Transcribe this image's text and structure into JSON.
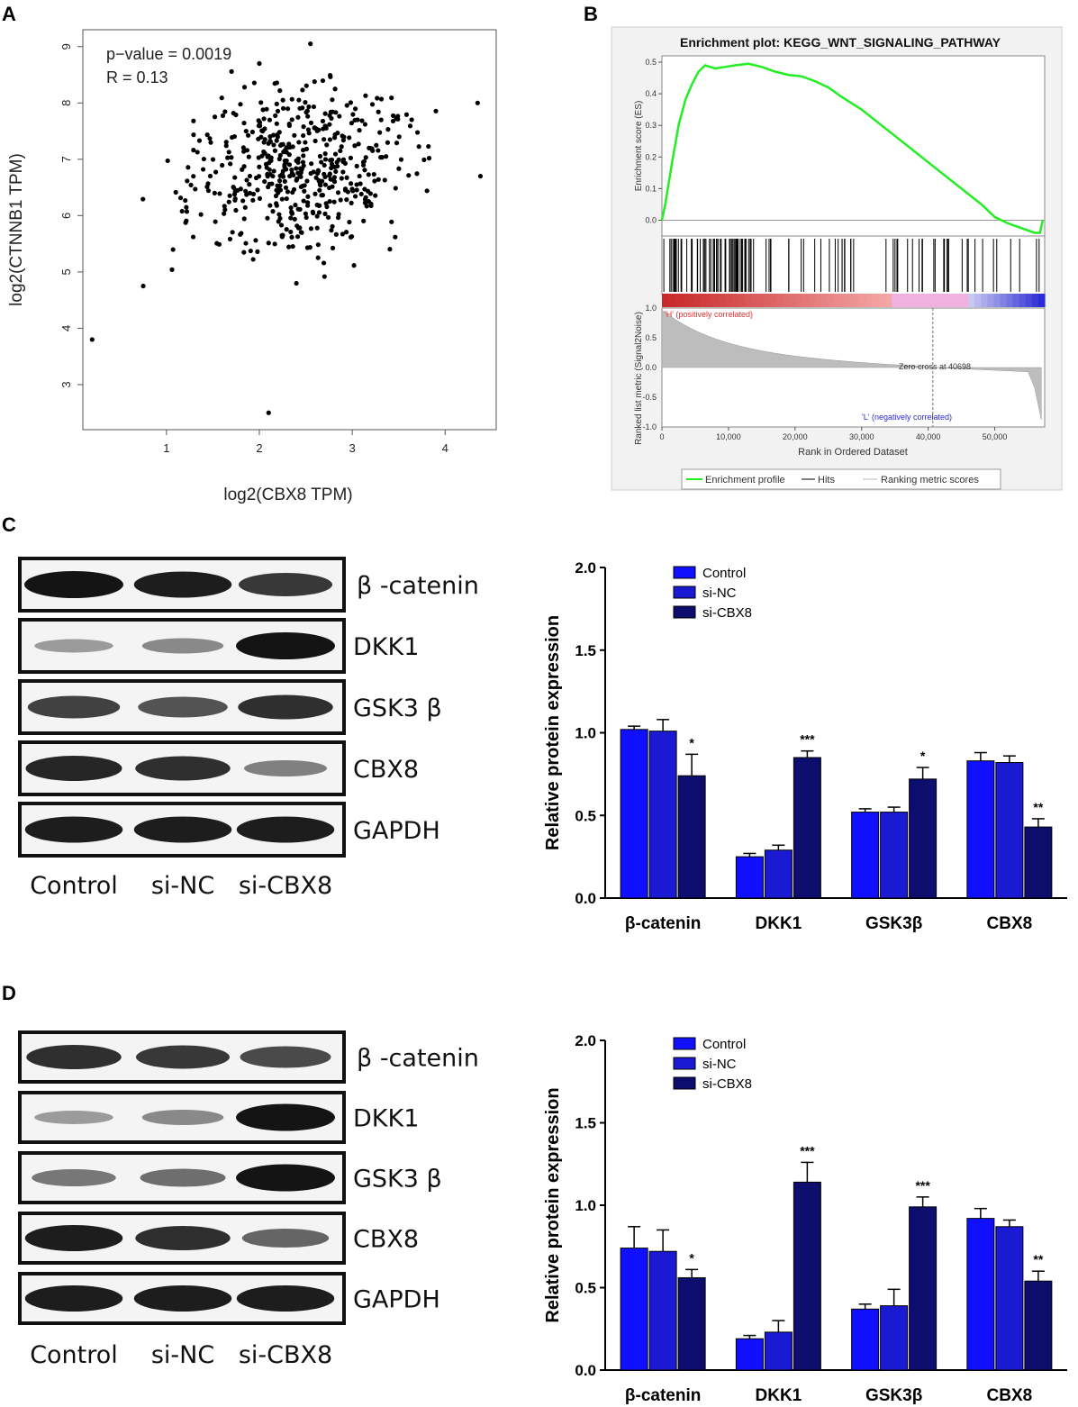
{
  "panels": {
    "a": "A",
    "b": "B",
    "c": "C",
    "d": "D"
  },
  "chart_data": [
    {
      "id": "A",
      "type": "scatter",
      "xlabel": "log2(CBX8 TPM)",
      "ylabel": "log2(CTNNB1 TPM)",
      "xlim": [
        0.1,
        4.55
      ],
      "ylim": [
        2.2,
        9.3
      ],
      "xticks": [
        1,
        2,
        3,
        4
      ],
      "yticks": [
        3,
        4,
        5,
        6,
        7,
        8,
        9
      ],
      "annotations": [
        "p−value = 0.0019",
        "R = 0.13"
      ],
      "n_points": 520,
      "outliers": [
        [
          0.2,
          3.8
        ],
        [
          2.1,
          2.5
        ],
        [
          2.55,
          9.05
        ],
        [
          2.0,
          8.7
        ],
        [
          0.75,
          4.75
        ],
        [
          4.38,
          6.7
        ],
        [
          4.35,
          8.0
        ]
      ],
      "center": [
        2.4,
        6.8
      ],
      "spread": [
        0.55,
        0.75
      ]
    },
    {
      "id": "B",
      "type": "line",
      "title": "Enrichment plot: KEGG_WNT_SIGNALING_PATHWAY",
      "ylabel_top": "Enrichment score (ES)",
      "ylabel_bottom": "Ranked list metric (Signal2Noise)",
      "xlabel": "Rank in Ordered Dataset",
      "xlim": [
        0,
        57500
      ],
      "xticks": [
        "0",
        "10,000",
        "20,000",
        "30,000",
        "40,000",
        "50,000"
      ],
      "xtick_values": [
        0,
        10000,
        20000,
        30000,
        40000,
        50000
      ],
      "es_ylim": [
        -0.05,
        0.52
      ],
      "es_yticks": [
        "0.0",
        "0.1",
        "0.2",
        "0.3",
        "0.4",
        "0.5"
      ],
      "es_ytick_values": [
        0.0,
        0.1,
        0.2,
        0.3,
        0.4,
        0.5
      ],
      "metric_ylim": [
        -1.0,
        1.0
      ],
      "metric_yticks": [
        "1.0",
        "0.5",
        "0.0",
        "-0.5",
        "-1.0"
      ],
      "metric_ytick_values": [
        1.0,
        0.5,
        0.0,
        -0.5,
        -1.0
      ],
      "es_curve": [
        [
          0,
          0.0
        ],
        [
          500,
          0.05
        ],
        [
          1500,
          0.18
        ],
        [
          2500,
          0.3
        ],
        [
          3500,
          0.38
        ],
        [
          4500,
          0.43
        ],
        [
          5500,
          0.47
        ],
        [
          6500,
          0.49
        ],
        [
          8000,
          0.48
        ],
        [
          9500,
          0.485
        ],
        [
          11000,
          0.49
        ],
        [
          13000,
          0.495
        ],
        [
          15000,
          0.485
        ],
        [
          17000,
          0.47
        ],
        [
          19000,
          0.46
        ],
        [
          21000,
          0.455
        ],
        [
          23000,
          0.44
        ],
        [
          25000,
          0.42
        ],
        [
          27000,
          0.39
        ],
        [
          30000,
          0.35
        ],
        [
          33000,
          0.3
        ],
        [
          36000,
          0.25
        ],
        [
          39000,
          0.2
        ],
        [
          42000,
          0.15
        ],
        [
          45000,
          0.1
        ],
        [
          48000,
          0.05
        ],
        [
          50000,
          0.01
        ],
        [
          52000,
          -0.01
        ],
        [
          54000,
          -0.025
        ],
        [
          56000,
          -0.04
        ],
        [
          56800,
          -0.04
        ],
        [
          57200,
          0.0
        ]
      ],
      "zero_cross_label": "Zero cross at 40698",
      "zero_cross": 40698,
      "pos_label": "'H' (positively correlated)",
      "neg_label": "'L' (negatively correlated)",
      "legend": [
        "Enrichment profile",
        "Hits",
        "Ranking metric scores"
      ],
      "colors": {
        "es": "#22ee22",
        "pos": "#e23030",
        "neg": "#2b2bd6"
      }
    },
    {
      "id": "C",
      "type": "bar",
      "categories": [
        "β-catenin",
        "DKK1",
        "GSK3β",
        "CBX8"
      ],
      "ylabel": "Relative protein expression",
      "ylim": [
        0.0,
        2.0
      ],
      "yticks": [
        "0.0",
        "0.5",
        "1.0",
        "1.5",
        "2.0"
      ],
      "ytick_values": [
        0.0,
        0.5,
        1.0,
        1.5,
        2.0
      ],
      "series": [
        {
          "name": "Control",
          "color": "#1010ff",
          "values": [
            1.02,
            0.25,
            0.52,
            0.83
          ],
          "errors": [
            0.02,
            0.02,
            0.02,
            0.05
          ]
        },
        {
          "name": "si-NC",
          "color": "#1a1ad2",
          "values": [
            1.01,
            0.29,
            0.52,
            0.82
          ],
          "errors": [
            0.07,
            0.03,
            0.03,
            0.04
          ]
        },
        {
          "name": "si-CBX8",
          "color": "#0d0d6e",
          "values": [
            0.74,
            0.85,
            0.72,
            0.43
          ],
          "errors": [
            0.13,
            0.04,
            0.07,
            0.05
          ]
        }
      ],
      "significance": [
        "*",
        "***",
        "*",
        "**"
      ]
    },
    {
      "id": "D",
      "type": "bar",
      "categories": [
        "β-catenin",
        "DKK1",
        "GSK3β",
        "CBX8"
      ],
      "ylabel": "Relative protein expression",
      "ylim": [
        0.0,
        2.0
      ],
      "yticks": [
        "0.0",
        "0.5",
        "1.0",
        "1.5",
        "2.0"
      ],
      "ytick_values": [
        0.0,
        0.5,
        1.0,
        1.5,
        2.0
      ],
      "series": [
        {
          "name": "Control",
          "color": "#1010ff",
          "values": [
            0.74,
            0.19,
            0.37,
            0.92
          ],
          "errors": [
            0.13,
            0.02,
            0.03,
            0.06
          ]
        },
        {
          "name": "si-NC",
          "color": "#1a1ad2",
          "values": [
            0.72,
            0.23,
            0.39,
            0.87
          ],
          "errors": [
            0.13,
            0.07,
            0.1,
            0.04
          ]
        },
        {
          "name": "si-CBX8",
          "color": "#0d0d6e",
          "values": [
            0.56,
            1.14,
            0.99,
            0.54
          ],
          "errors": [
            0.05,
            0.12,
            0.06,
            0.06
          ]
        }
      ],
      "significance": [
        "*",
        "***",
        "***",
        "**"
      ]
    }
  ],
  "blots": {
    "labels": [
      "β -catenin",
      "DKK1",
      "GSK3 β",
      "CBX8",
      "GAPDH"
    ],
    "lanes": [
      "Control",
      "si-NC",
      "si-CBX8"
    ],
    "c_intensity": [
      [
        1.0,
        0.95,
        0.8
      ],
      [
        0.25,
        0.35,
        1.0
      ],
      [
        0.75,
        0.65,
        0.85
      ],
      [
        0.9,
        0.85,
        0.4
      ],
      [
        0.95,
        0.95,
        0.95
      ]
    ],
    "d_intensity": [
      [
        0.85,
        0.8,
        0.7
      ],
      [
        0.25,
        0.35,
        1.0
      ],
      [
        0.45,
        0.5,
        1.0
      ],
      [
        0.95,
        0.85,
        0.55
      ],
      [
        0.95,
        0.95,
        0.95
      ]
    ]
  }
}
